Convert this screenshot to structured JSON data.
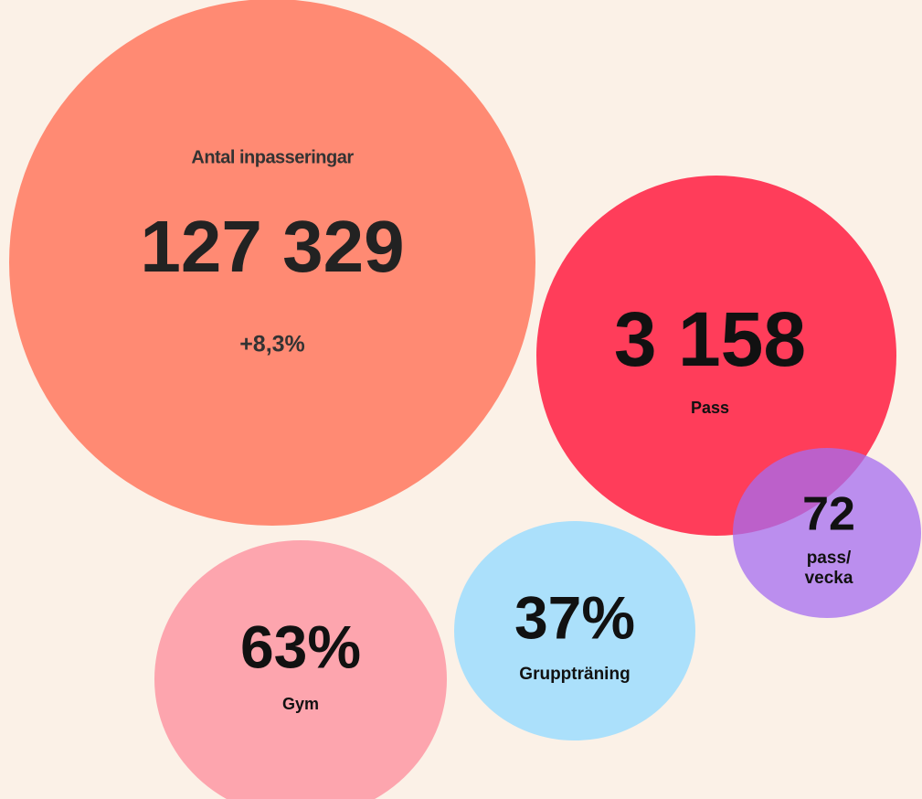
{
  "bubbles": [
    {
      "label": "Antal inpasseringar",
      "value": "127 329",
      "change": "+8,3%"
    },
    {
      "value": "3 158",
      "label": "Pass"
    },
    {
      "value": "72",
      "label": [
        "pass/",
        "vecka"
      ]
    },
    {
      "value": "63%",
      "label": "Gym"
    },
    {
      "value": "37%",
      "label": "Gruppträning"
    }
  ]
}
